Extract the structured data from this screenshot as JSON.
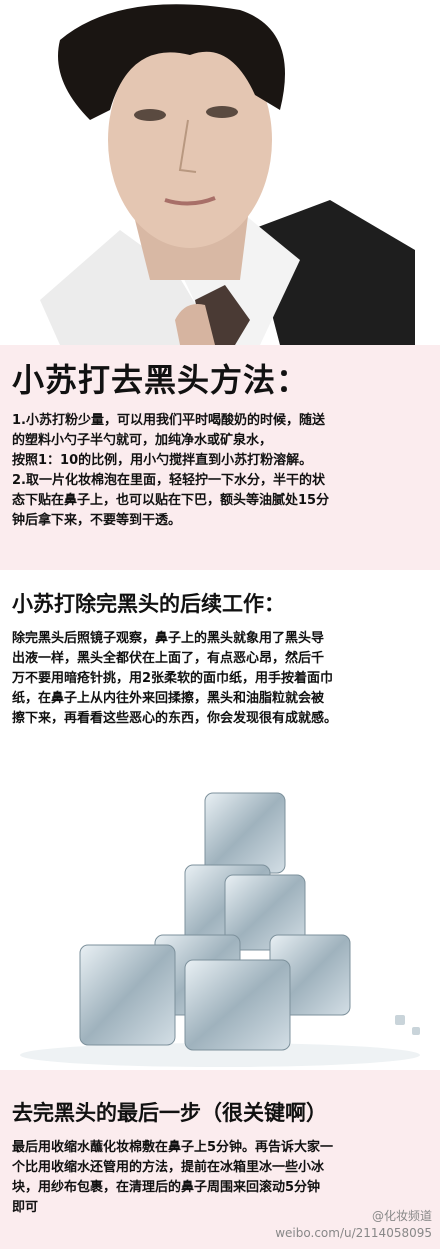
{
  "section1": {
    "title": "小苏打去黑头方法：",
    "lines": [
      "1.小苏打粉少量，可以用我们平时喝酸奶的时候，随送",
      "的塑料小勺子半勺就可，加纯净水或矿泉水，",
      "按照1：10的比例，用小勺搅拌直到小苏打粉溶解。",
      "2.取一片化妆棉泡在里面，轻轻拧一下水分，半干的状",
      "态下贴在鼻子上，也可以贴在下巴，额头等油腻处15分",
      "钟后拿下来，不要等到干透。"
    ]
  },
  "section2": {
    "title": "小苏打除完黑头的后续工作：",
    "lines": [
      " 除完黑头后照镜子观察，鼻子上的黑头就象用了黑头导",
      "出液一样，黑头全都伏在上面了，有点恶心昂，然后千",
      "万不要用暗疮针挑，用2张柔软的面巾纸，用手按着面巾",
      "纸，在鼻子上从内往外来回揉擦，黑头和油脂粒就会被",
      "擦下来，再看看这些恶心的东西，你会发现很有成就感。"
    ]
  },
  "section3": {
    "title": "去完黑头的最后一步（很关键啊）",
    "lines": [
      "最后用收缩水蘸化妆棉敷在鼻子上5分钟。再告诉大家一",
      "个比用收缩水还管用的方法，提前在冰箱里冰一些小冰",
      "块，用纱布包裹，在清理后的鼻子周围来回滚动5分钟",
      "即可"
    ]
  },
  "watermark": {
    "brand": "@化妆频道",
    "url": "weibo.com/u/2114058095"
  }
}
